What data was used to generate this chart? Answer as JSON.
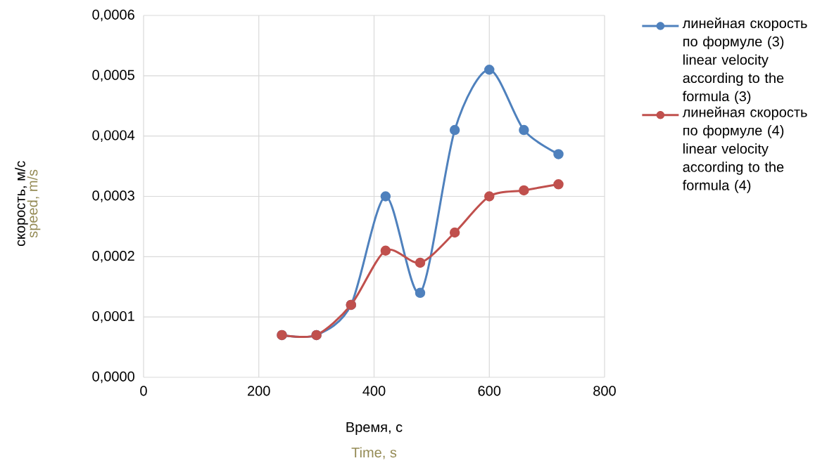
{
  "chart_data": {
    "type": "line",
    "xlabel": "Время, с",
    "ylabel": "скорость, м/с",
    "annotations": [
      "Time, s",
      "speed, m/s"
    ],
    "xlim": [
      0,
      800
    ],
    "xticks": [
      0,
      200,
      400,
      600,
      800
    ],
    "ylim": [
      0,
      0.0006
    ],
    "yticks": [
      {
        "value": 0,
        "label": "0,0000"
      },
      {
        "value": 0.0001,
        "label": "0,0001"
      },
      {
        "value": 0.0002,
        "label": "0,0002"
      },
      {
        "value": 0.0003,
        "label": "0,0003"
      },
      {
        "value": 0.0004,
        "label": "0,0004"
      },
      {
        "value": 0.0005,
        "label": "0,0005"
      },
      {
        "value": 0.0006,
        "label": "0,0006"
      }
    ],
    "grid": true,
    "legend": "right",
    "marker": "circle",
    "line_style": "solid",
    "x": [
      240,
      300,
      360,
      420,
      480,
      540,
      600,
      660,
      720
    ],
    "series": [
      {
        "name": "линейная скорость по формуле (3) linear velocity according to the formula (3)",
        "color": "#4f81bd",
        "values": [
          7e-05,
          7e-05,
          0.00012,
          0.0003,
          0.00014,
          0.00041,
          0.00051,
          0.00041,
          0.00037
        ]
      },
      {
        "name": "линейная скорость по формуле (4) linear velocity according to the formula (4)",
        "color": "#c0504d",
        "values": [
          7e-05,
          7e-05,
          0.00012,
          0.00021,
          0.00019,
          0.00024,
          0.0003,
          0.00031,
          0.00032
        ]
      }
    ]
  }
}
